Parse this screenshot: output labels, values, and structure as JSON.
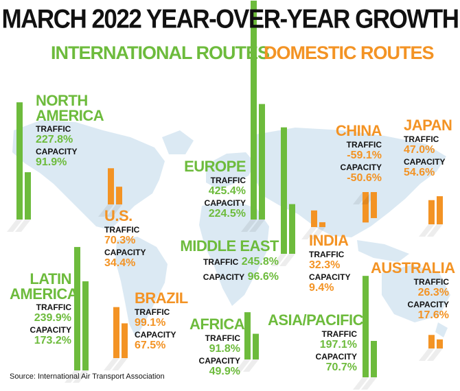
{
  "title": "MARCH 2022 YEAR-OVER-YEAR GROWTH",
  "subtitle_international": "INTERNATIONAL ROUTES",
  "subtitle_domestic": "DOMESTIC ROUTES",
  "traffic_label": "TRAFFIC",
  "capacity_label": "CAPACITY",
  "source": "Source: International Air Transport Association",
  "colors": {
    "international": "#6dbb3c",
    "domestic": "#f39324",
    "map": "#dbe9f3",
    "text": "#111111"
  },
  "regions": {
    "north_america": {
      "name_1": "NORTH",
      "name_2": "AMERICA",
      "traffic": "227.8%",
      "capacity": "91.9%"
    },
    "us": {
      "name": "U.S.",
      "traffic": "70.3%",
      "capacity": "34.4%"
    },
    "latin_america": {
      "name_1": "LATIN",
      "name_2": "AMERICA",
      "traffic": "239.9%",
      "capacity": "173.2%"
    },
    "brazil": {
      "name": "BRAZIL",
      "traffic": "99.1%",
      "capacity": "67.5%"
    },
    "europe": {
      "name": "EUROPE",
      "traffic": "425.4%",
      "capacity": "224.5%"
    },
    "middle_east": {
      "name": "MIDDLE EAST",
      "traffic": "245.8%",
      "capacity": "96.6%"
    },
    "africa": {
      "name": "AFRICA",
      "traffic": "91.8%",
      "capacity": "49.9%"
    },
    "china": {
      "name": "CHINA",
      "traffic": "-59.1%",
      "capacity": "-50.6%"
    },
    "india": {
      "name": "INDIA",
      "traffic": "32.3%",
      "capacity": "9.4%"
    },
    "japan": {
      "name": "JAPAN",
      "traffic": "47.0%",
      "capacity": "54.6%"
    },
    "asia_pacific": {
      "name": "ASIA/PACIFIC",
      "traffic": "197.1%",
      "capacity": "70.7%"
    },
    "australia": {
      "name": "AUSTRALIA",
      "traffic": "26.3%",
      "capacity": "17.6%"
    }
  },
  "chart_data": {
    "type": "bar",
    "title": "MARCH 2022 YEAR-OVER-YEAR GROWTH",
    "groups": [
      "INTERNATIONAL ROUTES",
      "DOMESTIC ROUTES"
    ],
    "categories": [
      "NORTH AMERICA",
      "LATIN AMERICA",
      "EUROPE",
      "MIDDLE EAST",
      "AFRICA",
      "ASIA/PACIFIC",
      "U.S.",
      "BRAZIL",
      "CHINA",
      "INDIA",
      "JAPAN",
      "AUSTRALIA"
    ],
    "category_group": [
      "INTERNATIONAL ROUTES",
      "INTERNATIONAL ROUTES",
      "INTERNATIONAL ROUTES",
      "INTERNATIONAL ROUTES",
      "INTERNATIONAL ROUTES",
      "INTERNATIONAL ROUTES",
      "DOMESTIC ROUTES",
      "DOMESTIC ROUTES",
      "DOMESTIC ROUTES",
      "DOMESTIC ROUTES",
      "DOMESTIC ROUTES",
      "DOMESTIC ROUTES"
    ],
    "series": [
      {
        "name": "TRAFFIC",
        "values": [
          227.8,
          239.9,
          425.4,
          245.8,
          91.8,
          197.1,
          70.3,
          99.1,
          -59.1,
          32.3,
          47.0,
          26.3
        ]
      },
      {
        "name": "CAPACITY",
        "values": [
          91.9,
          173.2,
          224.5,
          96.6,
          49.9,
          70.7,
          34.4,
          67.5,
          -50.6,
          9.4,
          54.6,
          17.6
        ]
      }
    ],
    "value_unit": "%"
  }
}
